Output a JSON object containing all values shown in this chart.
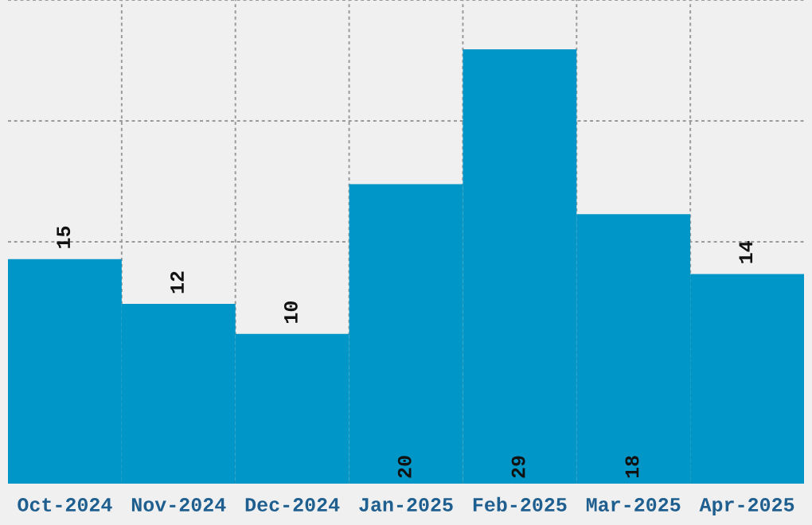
{
  "chart_data": {
    "type": "bar",
    "categories": [
      "Oct-2024",
      "Nov-2024",
      "Dec-2024",
      "Jan-2025",
      "Feb-2025",
      "Mar-2025",
      "Apr-2025"
    ],
    "values": [
      15,
      12,
      10,
      20,
      29,
      18,
      14
    ],
    "color": "#0096c8",
    "ylim": [
      0,
      32.3
    ],
    "tick_labels": "x",
    "grid": true,
    "data_labels": true
  }
}
